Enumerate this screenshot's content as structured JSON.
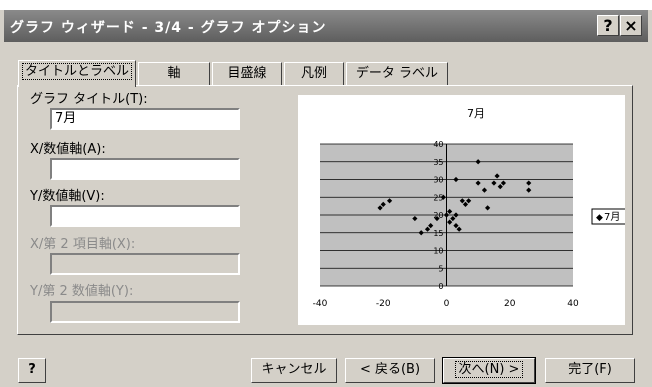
{
  "window": {
    "title": "グラフ ウィザード - 3/4 - グラフ オプション",
    "help_glyph": "?",
    "close_glyph": "×"
  },
  "tabs": [
    {
      "label": "タイトルとラベル",
      "active": true
    },
    {
      "label": "軸"
    },
    {
      "label": "目盛線"
    },
    {
      "label": "凡例"
    },
    {
      "label": "データ ラベル"
    }
  ],
  "fields": {
    "chart_title": {
      "label": "グラフ タイトル(T):",
      "value": "7月"
    },
    "x_axis": {
      "label": "X/数値軸(A):",
      "value": ""
    },
    "y_axis": {
      "label": "Y/数値軸(V):",
      "value": ""
    },
    "x2_axis": {
      "label": "X/第 2 項目軸(X):",
      "value": ""
    },
    "y2_axis": {
      "label": "Y/第 2 数値軸(Y):",
      "value": ""
    }
  },
  "footer": {
    "help_glyph": "?",
    "cancel": "キャンセル",
    "back": "< 戻る(B)",
    "next": "次へ(N) >",
    "finish": "完了(F)"
  },
  "chart_data": {
    "type": "scatter",
    "title": "7月",
    "legend": "7月",
    "legend_position": "right",
    "xlim": [
      -40,
      40
    ],
    "ylim": [
      0,
      40
    ],
    "x_ticks": [
      "-40",
      "-20",
      "0",
      "20",
      "40"
    ],
    "y_ticks": [
      "40",
      "35",
      "30",
      "25",
      "20",
      "15",
      "10",
      "5",
      "0"
    ],
    "grid": true,
    "plot_background": "#c0c0c0",
    "marker_color": "#000000",
    "points": [
      [
        -21,
        22
      ],
      [
        -20,
        23
      ],
      [
        -18,
        24
      ],
      [
        -10,
        19
      ],
      [
        -8,
        15
      ],
      [
        -6,
        16
      ],
      [
        -5,
        17
      ],
      [
        -1,
        25
      ],
      [
        0,
        20
      ],
      [
        1,
        18
      ],
      [
        2,
        19
      ],
      [
        3,
        20
      ],
      [
        3,
        17
      ],
      [
        4,
        16
      ],
      [
        5,
        24
      ],
      [
        6,
        23
      ],
      [
        7,
        24
      ],
      [
        3,
        30
      ],
      [
        10,
        35
      ],
      [
        10,
        29
      ],
      [
        12,
        27
      ],
      [
        13,
        22
      ],
      [
        15,
        29
      ],
      [
        16,
        31
      ],
      [
        17,
        28
      ],
      [
        18,
        29
      ],
      [
        26,
        27
      ],
      [
        26,
        29
      ],
      [
        -3,
        19
      ],
      [
        1,
        21
      ]
    ]
  }
}
